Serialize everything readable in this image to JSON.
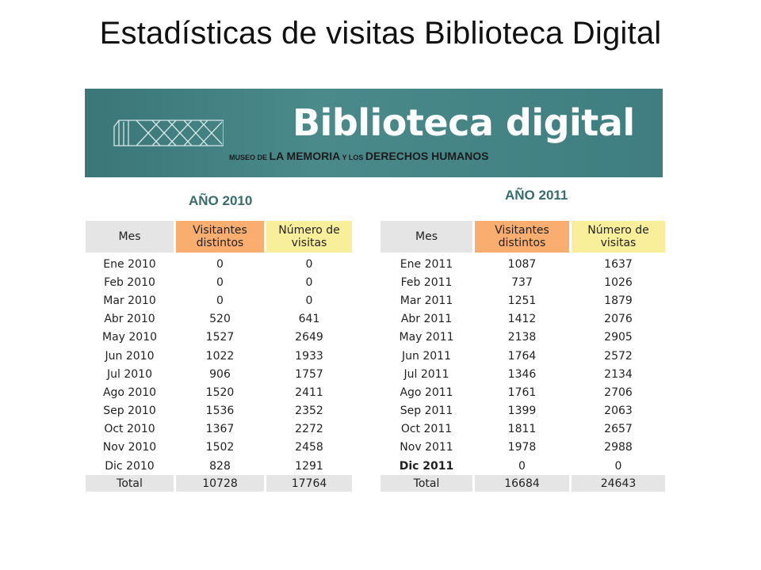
{
  "page": {
    "title": "Estadísticas de visitas Biblioteca Digital"
  },
  "banner": {
    "title": "Biblioteca digital",
    "subtitle_small_1": "MUSEO DE ",
    "subtitle_big_1": "LA MEMORIA",
    "subtitle_small_2": " Y LOS ",
    "subtitle_big_2": "DERECHOS HUMANOS"
  },
  "table_2010": {
    "heading": "AÑO 2010",
    "columns": [
      "Mes",
      "Visitantes distintos",
      "Número de visitas"
    ],
    "rows": [
      [
        "Ene 2010",
        "0",
        "0"
      ],
      [
        "Feb 2010",
        "0",
        "0"
      ],
      [
        "Mar 2010",
        "0",
        "0"
      ],
      [
        "Abr 2010",
        "520",
        "641"
      ],
      [
        "May 2010",
        "1527",
        "2649"
      ],
      [
        "Jun 2010",
        "1022",
        "1933"
      ],
      [
        "Jul 2010",
        "906",
        "1757"
      ],
      [
        "Ago 2010",
        "1520",
        "2411"
      ],
      [
        "Sep 2010",
        "1536",
        "2352"
      ],
      [
        "Oct 2010",
        "1367",
        "2272"
      ],
      [
        "Nov 2010",
        "1502",
        "2458"
      ],
      [
        "Dic 2010",
        "828",
        "1291"
      ]
    ],
    "total": [
      "Total",
      "10728",
      "17764"
    ]
  },
  "table_2011": {
    "heading": "AÑO 2011",
    "columns": [
      "Mes",
      "Visitantes distintos",
      "Número de visitas"
    ],
    "rows": [
      [
        "Ene 2011",
        "1087",
        "1637"
      ],
      [
        "Feb 2011",
        "737",
        "1026"
      ],
      [
        "Mar 2011",
        "1251",
        "1879"
      ],
      [
        "Abr 2011",
        "1412",
        "2076"
      ],
      [
        "May 2011",
        "2138",
        "2905"
      ],
      [
        "Jun 2011",
        "1764",
        "2572"
      ],
      [
        "Jul 2011",
        "1346",
        "2134"
      ],
      [
        "Ago 2011",
        "1761",
        "2706"
      ],
      [
        "Sep 2011",
        "1399",
        "2063"
      ],
      [
        "Oct 2011",
        "1811",
        "2657"
      ],
      [
        "Nov 2011",
        "1978",
        "2988"
      ],
      [
        "Dic 2011",
        "0",
        "0"
      ]
    ],
    "total": [
      "Total",
      "16684",
      "24643"
    ]
  },
  "colors": {
    "banner": "#3f7e80",
    "header_month": "#e5e5e5",
    "header_visitors": "#f9ad6f",
    "header_visits": "#f9ef9b",
    "year_heading": "#366c6c"
  }
}
